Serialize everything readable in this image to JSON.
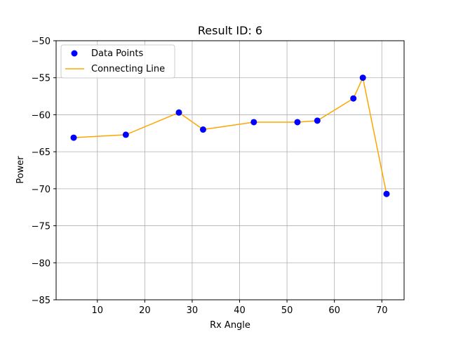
{
  "chart_data": {
    "type": "line",
    "title": "Result ID: 6",
    "xlabel": "Rx Angle",
    "ylabel": "Power",
    "xlim": [
      1.3,
      74.7
    ],
    "ylim": [
      -85,
      -50
    ],
    "xticks": [
      10,
      20,
      30,
      40,
      50,
      60,
      70
    ],
    "yticks": [
      -85,
      -80,
      -75,
      -70,
      -65,
      -60,
      -55,
      -50
    ],
    "xtick_labels": [
      "10",
      "20",
      "30",
      "40",
      "50",
      "60",
      "70"
    ],
    "ytick_labels": [
      "−85",
      "−80",
      "−75",
      "−70",
      "−65",
      "−60",
      "−55",
      "−50"
    ],
    "grid": true,
    "legend": {
      "placement": "top-left",
      "entries": [
        "Data Points",
        "Connecting Line"
      ]
    },
    "series": [
      {
        "name": "Data Points",
        "kind": "scatter",
        "color": "#0000ff",
        "x": [
          5,
          16,
          27.2,
          32.3,
          43,
          52.2,
          56.4,
          64,
          66,
          71
        ],
        "y": [
          -63.1,
          -62.7,
          -59.7,
          -62,
          -61,
          -61,
          -60.8,
          -57.8,
          -55,
          -70.7
        ]
      },
      {
        "name": "Connecting Line",
        "kind": "line",
        "color": "#ffa500",
        "x": [
          5,
          16,
          27.2,
          32.3,
          43,
          52.2,
          56.4,
          64,
          66,
          71
        ],
        "y": [
          -63.1,
          -62.7,
          -59.7,
          -62,
          -61,
          -61,
          -60.8,
          -57.8,
          -55,
          -70.7
        ]
      }
    ]
  }
}
